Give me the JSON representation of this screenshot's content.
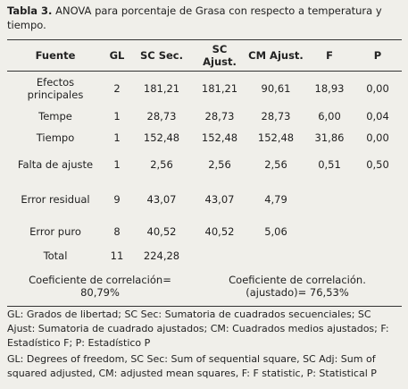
{
  "caption": {
    "label": "Tabla 3.",
    "text": "ANOVA para porcentaje de Grasa con respecto a temperatura y tiempo."
  },
  "table": {
    "headers": [
      "Fuente",
      "GL",
      "SC Sec.",
      "SC Ajust.",
      "CM Ajust.",
      "F",
      "P"
    ],
    "rows": [
      [
        "Efectos principales",
        "2",
        "181,21",
        "181,21",
        "90,61",
        "18,93",
        "0,00"
      ],
      [
        "Tempe",
        "1",
        "28,73",
        "28,73",
        "28,73",
        "6,00",
        "0,04"
      ],
      [
        "Tiempo",
        "1",
        "152,48",
        "152,48",
        "152,48",
        "31,86",
        "0,00"
      ],
      [
        "Falta de ajuste",
        "1",
        "2,56",
        "2,56",
        "2,56",
        "0,51",
        "0,50"
      ],
      [
        "Error residual",
        "9",
        "43,07",
        "43,07",
        "4,79",
        null,
        null
      ],
      [
        "Error puro",
        "8",
        "40,52",
        "40,52",
        "5,06",
        null,
        null
      ],
      [
        "Total",
        "11",
        "224,28",
        null,
        null,
        null,
        null
      ]
    ],
    "correlation": [
      "Coeficiente de correlación= 80,79%",
      "Coeficiente de correlación. (ajustado)= 76,53%"
    ]
  },
  "notes": [
    "GL: Grados de libertad; SC Sec: Sumatoria de cuadrados secuenciales; SC Ajust: Sumatoria de cuadrado ajustados; CM: Cuadrados medios ajustados; F: Estadístico F; P: Estadístico P",
    "GL: Degrees of freedom, SC Sec: Sum of sequential square, SC Adj: Sum of squared adjusted, CM: adjusted mean squares, F: F statistic, P: Statistical P"
  ]
}
